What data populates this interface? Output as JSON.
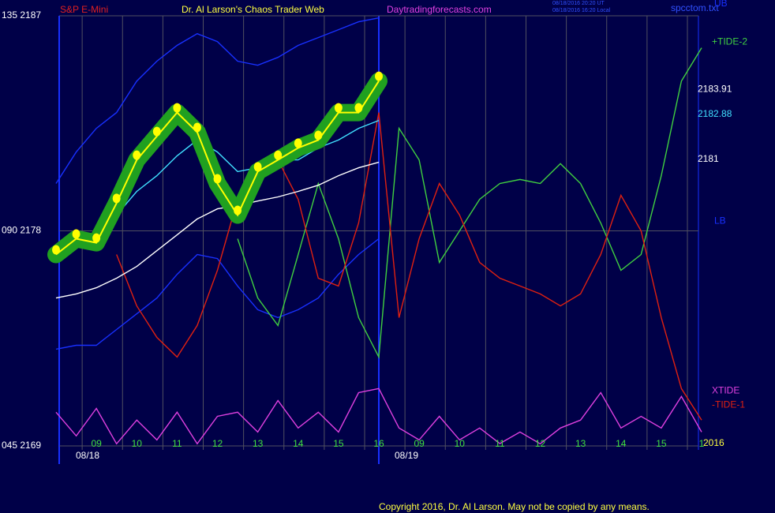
{
  "chart_data": {
    "type": "line",
    "header": {
      "symbol": "S&P E-Mini",
      "title": "Dr. Al Larson's Chaos Trader Web",
      "site": "Daytradingforecasts.com",
      "stamp": [
        "08/18/2016 20:20 UT",
        "08/18/2016 16:20 Local"
      ],
      "file": "spcctom.txt"
    },
    "dates": [
      "08/18",
      "08/19"
    ],
    "year": "2016",
    "copyright": "Copyright 2016, Dr. Al Larson. May not be copied by any means.",
    "xlim": [
      0,
      16
    ],
    "ylim": [
      2169,
      2187
    ],
    "yticks": [
      {
        "value": 2187,
        "label": "135  2187"
      },
      {
        "value": 2178,
        "label": "090  2178"
      },
      {
        "value": 2169,
        "label": "045  2169"
      }
    ],
    "xticks": [
      {
        "value": 1,
        "label": "09"
      },
      {
        "value": 2,
        "label": "10"
      },
      {
        "value": 3,
        "label": "11"
      },
      {
        "value": 4,
        "label": "12"
      },
      {
        "value": 5,
        "label": "13"
      },
      {
        "value": 6,
        "label": "14"
      },
      {
        "value": 7,
        "label": "15"
      },
      {
        "value": 8,
        "label": "16"
      },
      {
        "value": 9,
        "label": "09"
      },
      {
        "value": 10,
        "label": "10"
      },
      {
        "value": 11,
        "label": "11"
      },
      {
        "value": 12,
        "label": "12"
      },
      {
        "value": 13,
        "label": "13"
      },
      {
        "value": 14,
        "label": "14"
      },
      {
        "value": 15,
        "label": "15"
      },
      {
        "value": 16,
        "label": "1"
      }
    ],
    "grid": true,
    "price_labels": [
      {
        "value": 2183.91,
        "color": "#ffffff"
      },
      {
        "value": 2182.88,
        "color": "#40e0ff"
      },
      {
        "value": 2181.0,
        "color": "#ffffff"
      }
    ],
    "x": [
      0,
      0.5,
      1,
      1.5,
      2,
      2.5,
      3,
      3.5,
      4,
      4.5,
      5,
      5.5,
      6,
      6.5,
      7,
      7.5,
      8,
      8.5,
      9,
      9.5,
      10,
      10.5,
      11,
      11.5,
      12,
      12.5,
      13,
      13.5,
      14,
      14.5,
      15,
      15.5,
      16
    ],
    "series": [
      {
        "name": "UB",
        "color": "#1830ff",
        "values": [
          2179.98,
          2181.3,
          2182.29,
          2182.95,
          2184.27,
          2185.1,
          2185.76,
          2186.25,
          2185.92,
          2185.1,
          2184.93,
          2185.26,
          2185.76,
          2186.09,
          2186.42,
          2186.75,
          2186.91,
          null,
          null,
          null,
          null,
          null,
          null,
          null,
          null,
          null,
          null,
          null,
          null,
          null,
          null,
          null,
          null
        ]
      },
      {
        "name": "LB",
        "color": "#1830ff",
        "values": [
          2173.05,
          2173.21,
          2173.21,
          2173.87,
          2174.53,
          2175.19,
          2176.18,
          2177.01,
          2176.84,
          2175.69,
          2174.7,
          2174.37,
          2174.7,
          2175.19,
          2176.18,
          2177.01,
          2177.67,
          null,
          null,
          null,
          null,
          null,
          null,
          null,
          null,
          null,
          null,
          null,
          null,
          null,
          null,
          null,
          null
        ]
      },
      {
        "name": "+TIDE-2",
        "color": "#40d040",
        "values": [
          null,
          null,
          null,
          null,
          null,
          null,
          null,
          null,
          null,
          2177.67,
          2175.19,
          2174.04,
          2177.01,
          2179.98,
          2177.67,
          2174.37,
          2172.72,
          2182.29,
          2180.97,
          2176.68,
          2178.0,
          2179.32,
          2179.98,
          2180.15,
          2179.98,
          2180.81,
          2179.98,
          2178.33,
          2176.35,
          2177.01,
          2180.31,
          2184.27,
          2185.66
        ]
      },
      {
        "name": "-TIDE-1",
        "color": "#e02010",
        "values": [
          null,
          null,
          null,
          2177.01,
          2174.86,
          2173.54,
          2172.72,
          2174.04,
          2176.35,
          2179.32,
          2180.81,
          2180.97,
          2179.32,
          2176.02,
          2175.69,
          2178.33,
          2182.95,
          2174.37,
          2177.67,
          2179.98,
          2178.66,
          2176.68,
          2176.02,
          2175.69,
          2175.36,
          2174.86,
          2175.36,
          2177.01,
          2179.49,
          2178.0,
          2174.37,
          2171.4,
          2170.08
        ]
      },
      {
        "name": "XTIDE",
        "color": "#e040e0",
        "values": [
          2170.41,
          2169.42,
          2170.57,
          2169.09,
          2170.08,
          2169.25,
          2170.41,
          2169.09,
          2170.24,
          2170.41,
          2169.58,
          2170.9,
          2169.75,
          2170.41,
          2169.58,
          2171.23,
          2171.4,
          2169.75,
          2169.25,
          2170.24,
          2169.25,
          2169.75,
          2169.1,
          2169.58,
          2169.09,
          2169.75,
          2170.08,
          2171.23,
          2169.75,
          2170.24,
          2169.75,
          2171.07,
          2169.58
        ]
      },
      {
        "color": "#ffffff",
        "values": [
          2175.19,
          2175.36,
          2175.62,
          2176.02,
          2176.51,
          2177.17,
          2177.83,
          2178.5,
          2178.92,
          2179.06,
          2179.25,
          2179.42,
          2179.65,
          2179.91,
          2180.31,
          2180.64,
          2180.87,
          null,
          null,
          null,
          null,
          null,
          null,
          null,
          null,
          null,
          null,
          null,
          null,
          null,
          null,
          null,
          null
        ]
      },
      {
        "color": "#40e0ff",
        "values": [
          null,
          2177.74,
          2177.67,
          2178.66,
          2179.65,
          2180.31,
          2181.14,
          2181.8,
          2181.3,
          2180.48,
          2180.64,
          2180.97,
          2180.97,
          2181.47,
          2181.8,
          2182.29,
          2182.62,
          null,
          null,
          null,
          null,
          null,
          null,
          null,
          null,
          null,
          null,
          null,
          null,
          null,
          null,
          null,
          null
        ]
      },
      {
        "color": "#ffff00",
        "glow": "#20a020",
        "markers": true,
        "values": [
          2177.01,
          2177.67,
          2177.5,
          2179.16,
          2180.97,
          2181.96,
          2182.95,
          2182.13,
          2179.98,
          2178.66,
          2180.48,
          2180.97,
          2181.47,
          2181.8,
          2182.95,
          2182.95,
          2184.27,
          null,
          null,
          null,
          null,
          null,
          null,
          null,
          null,
          null,
          null,
          null,
          null,
          null,
          null,
          null,
          null
        ]
      }
    ],
    "legend_positions": {
      "UB": 2187.5,
      "LB": 2178.4,
      "+TIDE-2": 2185.9,
      "XTIDE": 2171.3,
      "-TIDE-1": 2170.7
    }
  }
}
